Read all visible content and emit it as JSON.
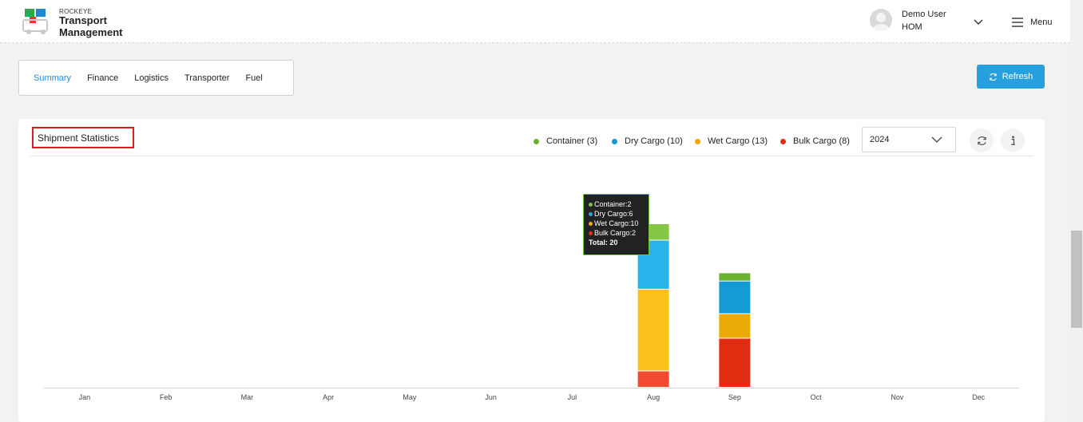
{
  "header": {
    "brand_small": "ROCKEYE",
    "brand_line1": "Transport",
    "brand_line2": "Management",
    "user_name": "Demo User",
    "user_role": "HOM",
    "menu_label": "Menu"
  },
  "tabs": [
    {
      "label": "Summary",
      "active": true
    },
    {
      "label": "Finance",
      "active": false
    },
    {
      "label": "Logistics",
      "active": false
    },
    {
      "label": "Transporter",
      "active": false
    },
    {
      "label": "Fuel",
      "active": false
    }
  ],
  "refresh_label": "Refresh",
  "card": {
    "title": "Shipment Statistics",
    "year": "2024"
  },
  "legend": [
    {
      "label": "Container (3)",
      "color": "#6ab22f"
    },
    {
      "label": "Dry Cargo (10)",
      "color": "#149bd6"
    },
    {
      "label": "Wet Cargo (13)",
      "color": "#ebaa05"
    },
    {
      "label": "Bulk Cargo (8)",
      "color": "#e12d12"
    }
  ],
  "tooltip": {
    "rows": [
      {
        "text": "Container:2",
        "color": "#7cc242"
      },
      {
        "text": "Dry Cargo:6",
        "color": "#2aa6e0"
      },
      {
        "text": "Wet Cargo:10",
        "color": "#f5a800"
      },
      {
        "text": "Bulk Cargo:2",
        "color": "#e6361b"
      }
    ],
    "total": "Total: 20"
  },
  "chart_data": {
    "type": "bar",
    "stacked": true,
    "categories": [
      "Jan",
      "Feb",
      "Mar",
      "Apr",
      "May",
      "Jun",
      "Jul",
      "Aug",
      "Sep",
      "Oct",
      "Nov",
      "Dec"
    ],
    "series": [
      {
        "name": "Bulk Cargo",
        "color": "#e12d12",
        "values": [
          0,
          0,
          0,
          0,
          0,
          0,
          0,
          2,
          6,
          0,
          0,
          0
        ]
      },
      {
        "name": "Wet Cargo",
        "color": "#ebaa05",
        "values": [
          0,
          0,
          0,
          0,
          0,
          0,
          0,
          10,
          3,
          0,
          0,
          0
        ]
      },
      {
        "name": "Dry Cargo",
        "color": "#149bd6",
        "values": [
          0,
          0,
          0,
          0,
          0,
          0,
          0,
          6,
          4,
          0,
          0,
          0
        ]
      },
      {
        "name": "Container",
        "color": "#6ab22f",
        "values": [
          0,
          0,
          0,
          0,
          0,
          0,
          0,
          2,
          1,
          0,
          0,
          0
        ]
      }
    ],
    "ylim": [
      0,
      20
    ],
    "hovered_category": "Aug",
    "legend_position": "top-right",
    "grid": false
  }
}
